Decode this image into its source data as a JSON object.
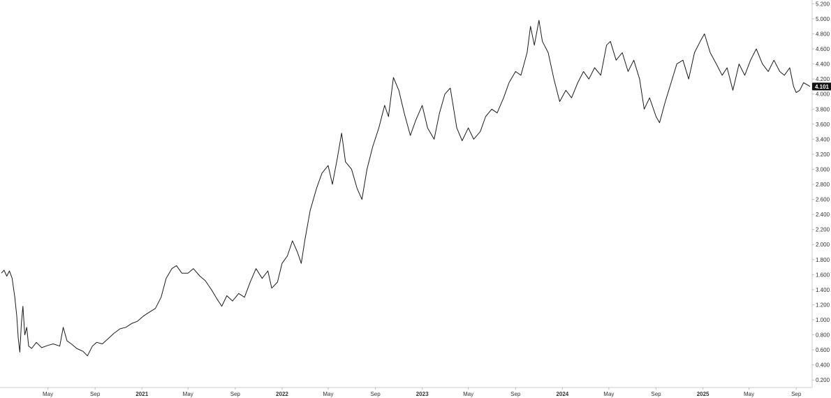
{
  "chart_data": {
    "type": "line",
    "title": "",
    "xlabel": "",
    "ylabel": "",
    "x_range": [
      "2020-01-01",
      "2025-10-07"
    ],
    "ylim": [
      0.1,
      5.25
    ],
    "y_axis_position": "right",
    "grid": false,
    "legend": "none",
    "y_ticks": [
      "0.200",
      "0.400",
      "0.600",
      "0.800",
      "1.000",
      "1.200",
      "1.400",
      "1.600",
      "1.800",
      "2.000",
      "2.200",
      "2.400",
      "2.600",
      "2.800",
      "3.000",
      "3.200",
      "3.400",
      "3.600",
      "3.800",
      "4.000",
      "4.200",
      "4.400",
      "4.600",
      "4.800",
      "5.000",
      "5.200"
    ],
    "y_tick_values": [
      0.2,
      0.4,
      0.6,
      0.8,
      1.0,
      1.2,
      1.4,
      1.6,
      1.8,
      2.0,
      2.2,
      2.4,
      2.6,
      2.8,
      3.0,
      3.2,
      3.4,
      3.6,
      3.8,
      4.0,
      4.2,
      4.4,
      4.6,
      4.8,
      5.0,
      5.2
    ],
    "x_ticks": [
      {
        "label": "May",
        "date": "2020-05-01",
        "year": false
      },
      {
        "label": "Sep",
        "date": "2020-09-01",
        "year": false
      },
      {
        "label": "2021",
        "date": "2021-01-01",
        "year": true
      },
      {
        "label": "May",
        "date": "2021-05-01",
        "year": false
      },
      {
        "label": "Sep",
        "date": "2021-09-01",
        "year": false
      },
      {
        "label": "2022",
        "date": "2022-01-01",
        "year": true
      },
      {
        "label": "May",
        "date": "2022-05-01",
        "year": false
      },
      {
        "label": "Sep",
        "date": "2022-09-01",
        "year": false
      },
      {
        "label": "2023",
        "date": "2023-01-01",
        "year": true
      },
      {
        "label": "May",
        "date": "2023-05-01",
        "year": false
      },
      {
        "label": "Sep",
        "date": "2023-09-01",
        "year": false
      },
      {
        "label": "2024",
        "date": "2024-01-01",
        "year": true
      },
      {
        "label": "May",
        "date": "2024-05-01",
        "year": false
      },
      {
        "label": "Sep",
        "date": "2024-09-01",
        "year": false
      },
      {
        "label": "2025",
        "date": "2025-01-01",
        "year": true
      },
      {
        "label": "May",
        "date": "2025-05-01",
        "year": false
      },
      {
        "label": "Sep",
        "date": "2025-09-01",
        "year": false
      }
    ],
    "series": [
      {
        "color": "#1a1a1a",
        "last_value": "4.101",
        "points": [
          [
            "2020-01-01",
            1.62
          ],
          [
            "2020-01-08",
            1.66
          ],
          [
            "2020-01-15",
            1.58
          ],
          [
            "2020-01-22",
            1.65
          ],
          [
            "2020-01-29",
            1.55
          ],
          [
            "2020-02-05",
            1.3
          ],
          [
            "2020-02-10",
            1.05
          ],
          [
            "2020-02-14",
            0.75
          ],
          [
            "2020-02-18",
            0.57
          ],
          [
            "2020-02-22",
            0.95
          ],
          [
            "2020-02-26",
            1.18
          ],
          [
            "2020-03-02",
            0.8
          ],
          [
            "2020-03-07",
            0.9
          ],
          [
            "2020-03-12",
            0.65
          ],
          [
            "2020-03-20",
            0.62
          ],
          [
            "2020-04-01",
            0.7
          ],
          [
            "2020-04-15",
            0.63
          ],
          [
            "2020-05-01",
            0.66
          ],
          [
            "2020-05-15",
            0.68
          ],
          [
            "2020-06-01",
            0.65
          ],
          [
            "2020-06-10",
            0.9
          ],
          [
            "2020-06-20",
            0.72
          ],
          [
            "2020-07-01",
            0.68
          ],
          [
            "2020-07-15",
            0.62
          ],
          [
            "2020-08-01",
            0.58
          ],
          [
            "2020-08-12",
            0.52
          ],
          [
            "2020-08-25",
            0.65
          ],
          [
            "2020-09-05",
            0.7
          ],
          [
            "2020-09-20",
            0.68
          ],
          [
            "2020-10-05",
            0.75
          ],
          [
            "2020-10-20",
            0.82
          ],
          [
            "2020-11-05",
            0.88
          ],
          [
            "2020-11-20",
            0.9
          ],
          [
            "2020-12-05",
            0.95
          ],
          [
            "2020-12-20",
            0.98
          ],
          [
            "2021-01-05",
            1.05
          ],
          [
            "2021-01-20",
            1.1
          ],
          [
            "2021-02-05",
            1.15
          ],
          [
            "2021-02-20",
            1.3
          ],
          [
            "2021-03-05",
            1.55
          ],
          [
            "2021-03-20",
            1.68
          ],
          [
            "2021-04-01",
            1.72
          ],
          [
            "2021-04-15",
            1.62
          ],
          [
            "2021-05-01",
            1.62
          ],
          [
            "2021-05-15",
            1.68
          ],
          [
            "2021-06-01",
            1.58
          ],
          [
            "2021-06-15",
            1.52
          ],
          [
            "2021-07-01",
            1.4
          ],
          [
            "2021-07-15",
            1.28
          ],
          [
            "2021-07-28",
            1.18
          ],
          [
            "2021-08-10",
            1.32
          ],
          [
            "2021-08-25",
            1.25
          ],
          [
            "2021-09-10",
            1.35
          ],
          [
            "2021-09-25",
            1.3
          ],
          [
            "2021-10-10",
            1.5
          ],
          [
            "2021-10-25",
            1.68
          ],
          [
            "2021-11-10",
            1.55
          ],
          [
            "2021-11-25",
            1.65
          ],
          [
            "2021-12-05",
            1.42
          ],
          [
            "2021-12-20",
            1.5
          ],
          [
            "2022-01-01",
            1.75
          ],
          [
            "2022-01-15",
            1.85
          ],
          [
            "2022-01-28",
            2.05
          ],
          [
            "2022-02-10",
            1.9
          ],
          [
            "2022-02-20",
            1.75
          ],
          [
            "2022-03-01",
            2.05
          ],
          [
            "2022-03-15",
            2.45
          ],
          [
            "2022-04-01",
            2.75
          ],
          [
            "2022-04-15",
            2.95
          ],
          [
            "2022-05-01",
            3.05
          ],
          [
            "2022-05-12",
            2.8
          ],
          [
            "2022-05-25",
            3.15
          ],
          [
            "2022-06-05",
            3.48
          ],
          [
            "2022-06-15",
            3.1
          ],
          [
            "2022-07-01",
            3.0
          ],
          [
            "2022-07-15",
            2.75
          ],
          [
            "2022-07-28",
            2.6
          ],
          [
            "2022-08-10",
            3.0
          ],
          [
            "2022-08-25",
            3.3
          ],
          [
            "2022-09-10",
            3.55
          ],
          [
            "2022-09-25",
            3.85
          ],
          [
            "2022-10-05",
            3.7
          ],
          [
            "2022-10-18",
            4.22
          ],
          [
            "2022-11-01",
            4.05
          ],
          [
            "2022-11-15",
            3.75
          ],
          [
            "2022-12-01",
            3.45
          ],
          [
            "2022-12-15",
            3.65
          ],
          [
            "2023-01-01",
            3.85
          ],
          [
            "2023-01-15",
            3.55
          ],
          [
            "2023-02-01",
            3.4
          ],
          [
            "2023-02-15",
            3.75
          ],
          [
            "2023-03-01",
            4.0
          ],
          [
            "2023-03-15",
            4.08
          ],
          [
            "2023-04-01",
            3.55
          ],
          [
            "2023-04-15",
            3.38
          ],
          [
            "2023-05-01",
            3.55
          ],
          [
            "2023-05-15",
            3.4
          ],
          [
            "2023-06-01",
            3.5
          ],
          [
            "2023-06-15",
            3.7
          ],
          [
            "2023-07-01",
            3.8
          ],
          [
            "2023-07-15",
            3.75
          ],
          [
            "2023-08-01",
            3.95
          ],
          [
            "2023-08-15",
            4.15
          ],
          [
            "2023-09-01",
            4.3
          ],
          [
            "2023-09-15",
            4.25
          ],
          [
            "2023-10-01",
            4.55
          ],
          [
            "2023-10-10",
            4.9
          ],
          [
            "2023-10-20",
            4.65
          ],
          [
            "2023-11-01",
            4.98
          ],
          [
            "2023-11-10",
            4.7
          ],
          [
            "2023-11-25",
            4.55
          ],
          [
            "2023-12-10",
            4.2
          ],
          [
            "2023-12-25",
            3.9
          ],
          [
            "2024-01-10",
            4.05
          ],
          [
            "2024-01-25",
            3.95
          ],
          [
            "2024-02-10",
            4.15
          ],
          [
            "2024-02-25",
            4.3
          ],
          [
            "2024-03-10",
            4.2
          ],
          [
            "2024-03-25",
            4.35
          ],
          [
            "2024-04-10",
            4.25
          ],
          [
            "2024-04-25",
            4.65
          ],
          [
            "2024-05-05",
            4.7
          ],
          [
            "2024-05-20",
            4.45
          ],
          [
            "2024-06-05",
            4.55
          ],
          [
            "2024-06-20",
            4.3
          ],
          [
            "2024-07-05",
            4.45
          ],
          [
            "2024-07-20",
            4.2
          ],
          [
            "2024-08-01",
            3.8
          ],
          [
            "2024-08-15",
            3.95
          ],
          [
            "2024-09-01",
            3.7
          ],
          [
            "2024-09-10",
            3.62
          ],
          [
            "2024-09-25",
            3.9
          ],
          [
            "2024-10-10",
            4.15
          ],
          [
            "2024-10-25",
            4.4
          ],
          [
            "2024-11-10",
            4.45
          ],
          [
            "2024-11-25",
            4.2
          ],
          [
            "2024-12-10",
            4.55
          ],
          [
            "2024-12-25",
            4.7
          ],
          [
            "2025-01-05",
            4.8
          ],
          [
            "2025-01-20",
            4.55
          ],
          [
            "2025-02-05",
            4.4
          ],
          [
            "2025-02-20",
            4.25
          ],
          [
            "2025-03-05",
            4.35
          ],
          [
            "2025-03-20",
            4.05
          ],
          [
            "2025-04-05",
            4.4
          ],
          [
            "2025-04-20",
            4.25
          ],
          [
            "2025-05-05",
            4.45
          ],
          [
            "2025-05-20",
            4.6
          ],
          [
            "2025-06-05",
            4.4
          ],
          [
            "2025-06-20",
            4.3
          ],
          [
            "2025-07-05",
            4.45
          ],
          [
            "2025-07-20",
            4.3
          ],
          [
            "2025-08-01",
            4.25
          ],
          [
            "2025-08-15",
            4.35
          ],
          [
            "2025-08-25",
            4.1
          ],
          [
            "2025-09-01",
            4.02
          ],
          [
            "2025-09-10",
            4.05
          ],
          [
            "2025-09-20",
            4.15
          ],
          [
            "2025-10-01",
            4.12
          ],
          [
            "2025-10-07",
            4.1
          ]
        ]
      }
    ]
  }
}
